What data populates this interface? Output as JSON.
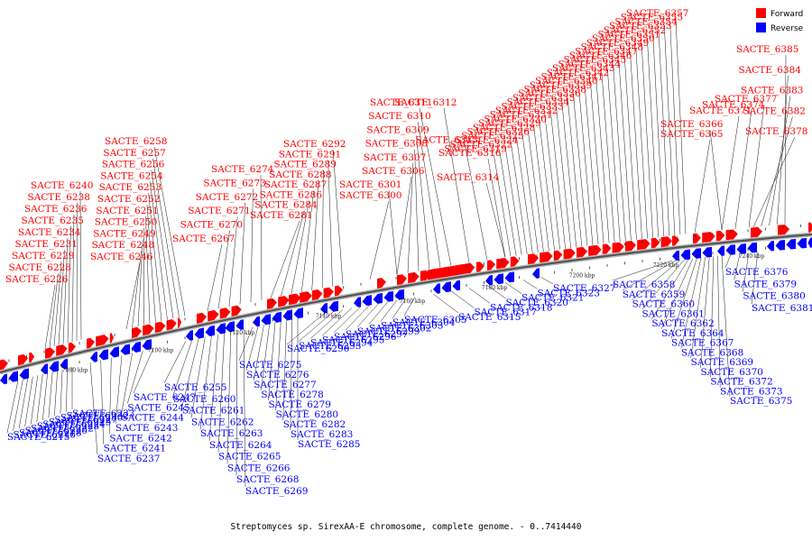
{
  "colors": {
    "forward": "#ff0000",
    "reverse": "#0000ff",
    "backbone": "#777777",
    "leader": "#000000"
  },
  "legend": {
    "forward_label": "Forward",
    "reverse_label": "Reverse"
  },
  "footer": {
    "caption": "Streptomyces sp. SirexAA-E chromosome, complete genome. - 0..7414440"
  },
  "axis": {
    "ticks": [
      "7080 kbp",
      "7100 kbp",
      "7120 kbp",
      "7140 kbp",
      "7160 kbp",
      "7180 kbp",
      "7200 kbp",
      "7220 kbp",
      "7240 kbp"
    ]
  },
  "forward_genes": [
    "SACTE_6226",
    "SACTE_6228",
    "SACTE_6229",
    "SACTE_6231",
    "SACTE_6234",
    "SACTE_6235",
    "SACTE_6236",
    "SACTE_6238",
    "SACTE_6240",
    "SACTE_6246",
    "SACTE_6248",
    "SACTE_6249",
    "SACTE_6250",
    "SACTE_6251",
    "SACTE_6252",
    "SACTE_6253",
    "SACTE_6254",
    "SACTE_6256",
    "SACTE_6257",
    "SACTE_6258",
    "SACTE_6267",
    "SACTE_6270",
    "SACTE_6271",
    "SACTE_6272",
    "SACTE_6273",
    "SACTE_6274",
    "SACTE_6281",
    "SACTE_6284",
    "SACTE_6286",
    "SACTE_6287",
    "SACTE_6288",
    "SACTE_6289",
    "SACTE_6291",
    "SACTE_6292",
    "SACTE_6300",
    "SACTE_6301",
    "SACTE_6306",
    "SACTE_6307",
    "SACTE_6308",
    "SACTE_6309",
    "SACTE_6310",
    "SACTE_6311",
    "SACTE_6312",
    "SACTE_6313",
    "SACTE_6314",
    "SACTE_6316",
    "SACTE_6319",
    "SACTE_6322",
    "SACTE_6324",
    "SACTE_6325",
    "SACTE_6326",
    "SACTE_6328",
    "SACTE_6329",
    "SACTE_6330",
    "SACTE_6331",
    "SACTE_6332",
    "SACTE_6333",
    "SACTE_6334",
    "SACTE_6335",
    "SACTE_6336",
    "SACTE_6338",
    "SACTE_6339",
    "SACTE_6340",
    "SACTE_6341",
    "SACTE_6342",
    "SACTE_6343",
    "SACTE_6344",
    "SACTE_6345",
    "SACTE_6346",
    "SACTE_6347",
    "SACTE_6348",
    "SACTE_6349",
    "SACTE_6350",
    "SACTE_6351",
    "SACTE_6352",
    "SACTE_6353",
    "SACTE_6354",
    "SACTE_6355",
    "SACTE_6357",
    "SACTE_6365",
    "SACTE_6366",
    "SACTE_6371",
    "SACTE_6374",
    "SACTE_6377",
    "SACTE_6378",
    "SACTE_6382",
    "SACTE_6383",
    "SACTE_6384",
    "SACTE_6385"
  ],
  "reverse_genes": [
    "SACTE_6215",
    "SACTE_6216",
    "SACTE_6218",
    "SACTE_6220",
    "SACTE_6222",
    "SACTE_6223",
    "SACTE_6224",
    "SACTE_6225",
    "SACTE_6227",
    "SACTE_6230",
    "SACTE_6232",
    "SACTE_6233",
    "SACTE_6237",
    "SACTE_6241",
    "SACTE_6242",
    "SACTE_6243",
    "SACTE_6244",
    "SACTE_6245",
    "SACTE_6247",
    "SACTE_6255",
    "SACTE_6260",
    "SACTE_6261",
    "SACTE_6262",
    "SACTE_6263",
    "SACTE_6264",
    "SACTE_6265",
    "SACTE_6266",
    "SACTE_6268",
    "SACTE_6269",
    "SACTE_6275",
    "SACTE_6276",
    "SACTE_6277",
    "SACTE_6278",
    "SACTE_6279",
    "SACTE_6280",
    "SACTE_6282",
    "SACTE_6283",
    "SACTE_6285",
    "SACTE_6290",
    "SACTE_6293",
    "SACTE_6294",
    "SACTE_6295",
    "SACTE_6296",
    "SACTE_6297",
    "SACTE_6299",
    "SACTE_6302",
    "SACTE_6303",
    "SACTE_6304",
    "SACTE_6305",
    "SACTE_6315",
    "SACTE_6317",
    "SACTE_6318",
    "SACTE_6320",
    "SACTE_6321",
    "SACTE_6323",
    "SACTE_6327",
    "SACTE_6358",
    "SACTE_6359",
    "SACTE_6360",
    "SACTE_6361",
    "SACTE_6362",
    "SACTE_6364",
    "SACTE_6367",
    "SACTE_6368",
    "SACTE_6369",
    "SACTE_6370",
    "SACTE_6372",
    "SACTE_6373",
    "SACTE_6375",
    "SACTE_6376",
    "SACTE_6379",
    "SACTE_6380",
    "SACTE_6381"
  ]
}
